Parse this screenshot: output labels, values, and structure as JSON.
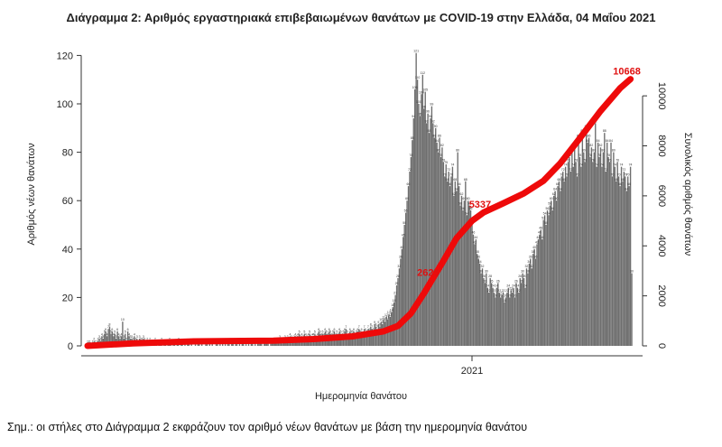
{
  "title": "Διάγραμμα 2: Αριθμός εργαστηριακά επιβεβαιωμένων θανάτων με COVID-19 στην Ελλάδα, 04 Μαΐου 2021",
  "footnote": "Σημ.: οι στήλες στο Διάγραμμα 2 εκφράζουν τον αριθμό νέων θανάτων με βάση την ημερομηνία θανάτου",
  "colors": {
    "bars": "#6e6e6e",
    "cumulative_line": "#ee0a0a"
  },
  "chart_data": {
    "type": "bar",
    "xlabel": "Ημερομηνία θανάτου",
    "ylabel": "Αριθμός νέων θανάτων",
    "y2label": "Συνολικός αριθμός θανάτων",
    "x_tick_labels": [
      "2021"
    ],
    "x_tick_positions": [
      "2021-01-01"
    ],
    "x_range": [
      "2020-03-11",
      "2021-05-04"
    ],
    "ylim": [
      0,
      125
    ],
    "y_ticks": [
      0,
      20,
      40,
      60,
      80,
      100,
      120
    ],
    "y2lim": [
      0,
      12100
    ],
    "y2_ticks": [
      0,
      2000,
      4000,
      6000,
      8000,
      10000
    ],
    "y2_tick_labels": [
      "0",
      "2000",
      "4000",
      "6000",
      "8000",
      "10000"
    ],
    "grid": false,
    "legend": "none",
    "series": [
      {
        "kind": "bar",
        "axis": "left",
        "start_date": "2020-03-11",
        "monthly_profile": [
          {
            "month": "2020-03",
            "values": [
              1,
              1,
              1,
              0,
              1,
              2,
              1,
              1,
              2,
              3,
              2,
              4,
              3,
              5,
              6,
              4,
              7,
              8,
              5,
              6,
              4
            ]
          },
          {
            "month": "2020-04",
            "values": [
              5,
              3,
              6,
              4,
              3,
              4,
              10,
              3,
              5,
              2,
              6,
              4,
              3,
              3,
              2,
              4,
              2,
              3,
              1,
              3,
              2,
              2,
              3,
              2,
              1,
              2,
              1,
              2,
              1,
              1
            ]
          },
          {
            "month": "2020-05",
            "values": [
              1,
              2,
              1,
              0,
              1,
              1,
              2,
              0,
              1,
              1,
              0,
              1,
              2,
              1,
              0,
              1,
              1,
              0,
              1,
              2,
              0,
              1,
              1,
              0,
              1,
              0,
              1,
              1,
              0,
              1,
              0
            ]
          },
          {
            "month": "2020-06",
            "values": [
              0,
              1,
              0,
              1,
              1,
              0,
              1,
              0,
              0,
              1,
              1,
              0,
              1,
              0,
              1,
              0,
              0,
              1,
              1,
              0,
              1,
              0,
              1,
              0,
              1,
              0,
              1,
              1,
              0,
              1
            ]
          },
          {
            "month": "2020-07",
            "values": [
              1,
              0,
              1,
              1,
              0,
              1,
              0,
              1,
              1,
              0,
              1,
              0,
              1,
              0,
              1,
              1,
              0,
              1,
              0,
              1,
              1,
              2,
              1,
              0,
              1,
              1,
              2,
              1,
              0,
              1,
              1
            ]
          },
          {
            "month": "2020-08",
            "values": [
              1,
              2,
              1,
              1,
              2,
              3,
              2,
              1,
              2,
              3,
              2,
              3,
              2,
              4,
              3,
              2,
              3,
              4,
              3,
              4,
              5,
              3,
              4,
              3,
              5,
              4,
              3,
              4,
              5,
              3,
              4
            ]
          },
          {
            "month": "2020-09",
            "values": [
              4,
              5,
              3,
              4,
              6,
              5,
              4,
              5,
              4,
              6,
              5,
              4,
              6,
              5,
              4,
              5,
              6,
              4,
              5,
              4,
              6,
              5,
              4,
              5,
              6,
              7,
              5,
              4,
              6,
              5
            ]
          },
          {
            "month": "2020-10",
            "values": [
              5,
              6,
              4,
              5,
              6,
              7,
              5,
              6,
              4,
              7,
              6,
              5,
              7,
              6,
              8,
              7,
              6,
              9,
              8,
              7,
              9,
              8,
              10,
              9,
              11,
              10,
              12,
              11,
              13,
              12,
              14
            ]
          },
          {
            "month": "2020-11",
            "values": [
              16,
              18,
              21,
              25,
              28,
              32,
              36,
              40,
              45,
              50,
              55,
              60,
              66,
              72,
              78,
              85,
              94,
              106,
              121,
              110,
              100,
              95,
              104,
              112,
              98,
              105,
              92,
              96,
              88,
              94
            ]
          },
          {
            "month": "2020-12",
            "values": [
              99,
              92,
              86,
              90,
              84,
              80,
              86,
              78,
              82,
              76,
              70,
              75,
              68,
              72,
              66,
              70,
              74,
              62,
              68,
              64,
              80,
              66,
              58,
              62,
              56,
              60,
              68,
              54,
              60,
              58,
              56
            ]
          },
          {
            "month": "2021-01",
            "values": [
              50,
              46,
              42,
              44,
              38,
              36,
              34,
              30,
              32,
              28,
              26,
              30,
              24,
              22,
              28,
              26,
              24,
              22,
              20,
              24,
              26,
              22,
              20,
              21,
              22,
              18,
              20,
              22,
              24,
              20,
              23
            ]
          },
          {
            "month": "2021-02",
            "values": [
              22,
              24,
              20,
              26,
              24,
              22,
              28,
              26,
              30,
              28,
              24,
              32,
              30,
              34,
              36,
              32,
              38,
              40,
              36,
              42,
              44,
              46,
              48,
              44,
              52,
              54,
              50,
              56
            ]
          },
          {
            "month": "2021-03",
            "values": [
              54,
              58,
              60,
              56,
              62,
              64,
              60,
              66,
              68,
              64,
              70,
              72,
              68,
              74,
              70,
              76,
              78,
              72,
              80,
              74,
              82,
              76,
              70,
              86,
              78,
              74,
              88,
              80,
              76,
              90,
              84
            ]
          },
          {
            "month": "2021-04",
            "values": [
              86,
              78,
              82,
              76,
              80,
              92,
              74,
              84,
              78,
              82,
              74,
              80,
              88,
              72,
              84,
              78,
              76,
              84,
              70,
              80,
              74,
              68,
              76,
              70,
              66,
              74,
              68,
              72,
              70,
              64
            ]
          },
          {
            "month": "2021-05",
            "values": [
              70,
              66,
              74,
              30
            ]
          }
        ]
      },
      {
        "kind": "line",
        "axis": "right",
        "points": [
          {
            "date": "2020-03-11",
            "value": 0
          },
          {
            "date": "2020-04-15",
            "value": 100
          },
          {
            "date": "2020-06-01",
            "value": 180
          },
          {
            "date": "2020-08-01",
            "value": 210
          },
          {
            "date": "2020-09-01",
            "value": 270
          },
          {
            "date": "2020-10-01",
            "value": 380
          },
          {
            "date": "2020-10-25",
            "value": 580
          },
          {
            "date": "2020-11-05",
            "value": 800
          },
          {
            "date": "2020-11-15",
            "value": 1300
          },
          {
            "date": "2020-11-25",
            "value": 2100
          },
          {
            "date": "2020-12-01",
            "value": 2625
          },
          {
            "date": "2020-12-10",
            "value": 3400
          },
          {
            "date": "2020-12-20",
            "value": 4300
          },
          {
            "date": "2021-01-01",
            "value": 5000
          },
          {
            "date": "2021-01-10",
            "value": 5337
          },
          {
            "date": "2021-01-25",
            "value": 5700
          },
          {
            "date": "2021-02-10",
            "value": 6100
          },
          {
            "date": "2021-02-25",
            "value": 6600
          },
          {
            "date": "2021-03-10",
            "value": 7300
          },
          {
            "date": "2021-03-25",
            "value": 8300
          },
          {
            "date": "2021-04-10",
            "value": 9400
          },
          {
            "date": "2021-04-25",
            "value": 10300
          },
          {
            "date": "2021-05-03",
            "value": 10668
          }
        ]
      }
    ],
    "annotations": [
      {
        "date": "2020-12-01",
        "value": 2625,
        "text": "2625"
      },
      {
        "date": "2021-01-10",
        "value": 5337,
        "text": "5337"
      },
      {
        "date": "2021-05-03",
        "value": 10668,
        "text": "10668"
      }
    ]
  }
}
